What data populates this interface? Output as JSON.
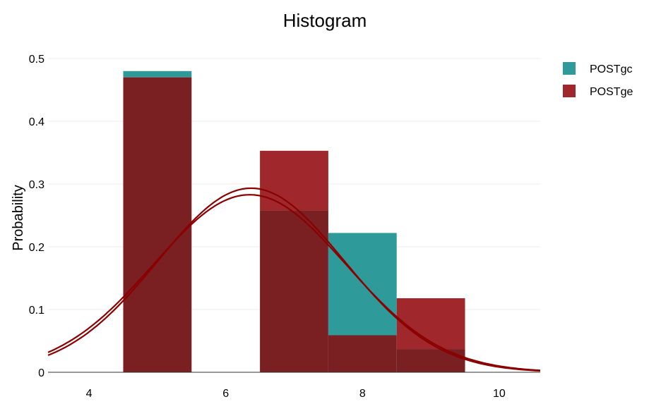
{
  "chart_data": {
    "type": "bar",
    "title": "Histogram",
    "xlabel": "",
    "ylabel": "Probability",
    "xlim": [
      3.4,
      10.6
    ],
    "ylim": [
      0,
      0.5
    ],
    "x_ticks": [
      4,
      6,
      8,
      10
    ],
    "y_ticks": [
      0,
      0.1,
      0.2,
      0.3,
      0.4,
      0.5
    ],
    "y_tick_labels": [
      "0",
      "0.1",
      "0.2",
      "0.3",
      "0.4",
      "0.5"
    ],
    "grid": true,
    "legend_position": "top-right",
    "bin_width": 1,
    "bins": [
      5,
      6,
      7,
      8,
      9
    ],
    "series": [
      {
        "name": "POSTgc",
        "color": "#2e9a9a",
        "values": [
          0.48,
          0,
          0.258,
          0.222,
          0.037
        ],
        "curve": {
          "mean": 6.37,
          "sd": 1.36
        }
      },
      {
        "name": "POSTge",
        "color": "#a0282c",
        "values": [
          0.47,
          0,
          0.353,
          0.059,
          0.118
        ],
        "curve": {
          "mean": 6.35,
          "sd": 1.41
        }
      }
    ],
    "overlap_color": "#7a1f22",
    "curve_color": "#8b0000"
  }
}
